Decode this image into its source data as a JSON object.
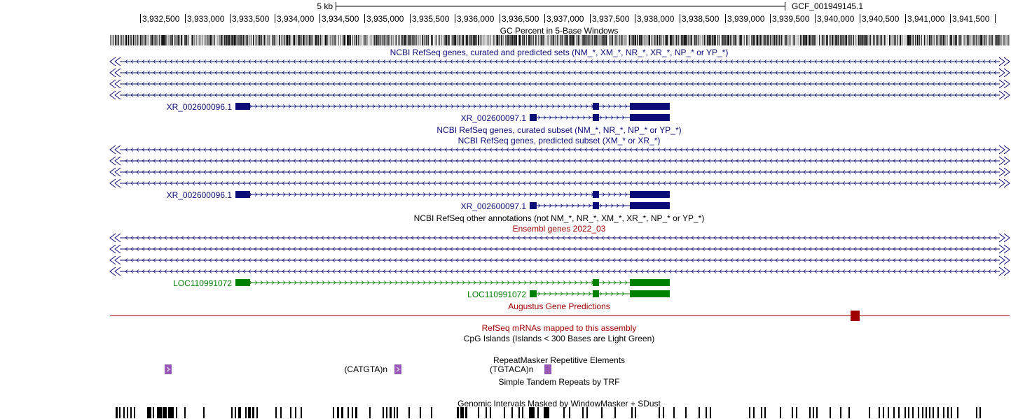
{
  "colors": {
    "refseq": "#0c0c78",
    "ensembl": "#008000",
    "augustus": "#a00000",
    "repeat": "#9b59b6",
    "black": "#000000",
    "white": "#ffffff"
  },
  "scale": {
    "label": "5 kb",
    "assembly": "GCF_001949145.1"
  },
  "ruler": {
    "ticks": [
      "3,932,500",
      "3,933,000",
      "3,933,500",
      "3,934,000",
      "3,934,500",
      "3,935,000",
      "3,935,500",
      "3,936,000",
      "3,936,500",
      "3,937,000",
      "3,937,500",
      "3,938,000",
      "3,938,500",
      "3,939,000",
      "3,939,500",
      "3,940,000",
      "3,940,500",
      "3,941,000",
      "3,941,500"
    ]
  },
  "tracks": {
    "gc_percent": "GC Percent in 5-Base Windows",
    "refseq_all": "NCBI RefSeq genes, curated and predicted sets (NM_*, XM_*, NR_*, XR_*, NP_* or YP_*)",
    "refseq_curated": "NCBI RefSeq genes, curated subset (NM_*, NR_*, NP_* or YP_*)",
    "refseq_predicted": "NCBI RefSeq genes, predicted subset (XM_* or XR_*)",
    "refseq_other": "NCBI RefSeq other annotations (not NM_*, NR_*, XM_*, XR_*, NP_* or YP_*)",
    "ensembl": "Ensembl genes 2022_03",
    "augustus": "Augustus Gene Predictions",
    "refseq_mrna": "RefSeq mRNAs mapped to this assembly",
    "cpg": "CpG Islands (Islands < 300 Bases are Light Green)",
    "repeatmasker": "RepeatMasker Repetitive Elements",
    "simple_repeats": "Simple Tandem Repeats by TRF",
    "windowmasker": "Genomic Intervals Masked by WindowMasker + SDust"
  },
  "genes": {
    "refseq_all_1": "XR_002600096.1",
    "refseq_all_2": "XR_002600097.1",
    "refseq_pred_1": "XR_002600096.1",
    "refseq_pred_2": "XR_002600097.1",
    "ensembl_1": "LOC110991072",
    "ensembl_2": "LOC110991072"
  },
  "repeats": {
    "catgta": "(CATGTA)n",
    "tgtaca": "(TGTACA)n"
  }
}
